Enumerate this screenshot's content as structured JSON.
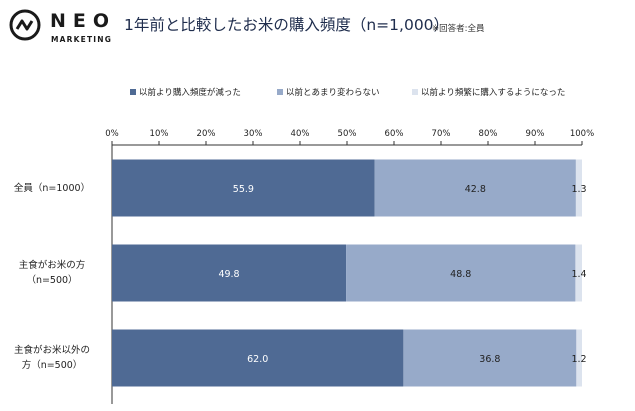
{
  "logo": {
    "name": "NEO",
    "sub": "MARKETING"
  },
  "title": "1年前と比較したお米の購入頻度（n=1,000）",
  "note": "※回答者:全員",
  "colors": {
    "series1": "#4f6a94",
    "series2": "#97aac9",
    "series3": "#dce3ee",
    "axis": "#333333",
    "title": "#1f2d4d"
  },
  "chart_data": {
    "type": "bar",
    "orientation": "horizontal",
    "stacked": true,
    "xlim": [
      0,
      100
    ],
    "xticks": [
      "0%",
      "10%",
      "20%",
      "30%",
      "40%",
      "50%",
      "60%",
      "70%",
      "80%",
      "90%",
      "100%"
    ],
    "legend_position": "top",
    "categories": [
      "全員（n=1000）",
      "主食がお米の方（n=500）",
      "主食がお米以外の方（n=500）"
    ],
    "category_lines": [
      [
        "全員（n=1000）"
      ],
      [
        "主食がお米の方",
        "（n=500）"
      ],
      [
        "主食がお米以外の",
        "方（n=500）"
      ]
    ],
    "series": [
      {
        "name": "以前より購入頻度が減った",
        "values": [
          55.9,
          49.8,
          62.0
        ],
        "labels": [
          "55.9",
          "49.8",
          "62.0"
        ]
      },
      {
        "name": "以前とあまり変わらない",
        "values": [
          42.8,
          48.8,
          36.8
        ],
        "labels": [
          "42.8",
          "48.8",
          "36.8"
        ]
      },
      {
        "name": "以前より頻繁に購入するようになった",
        "values": [
          1.3,
          1.4,
          1.2
        ],
        "labels": [
          "1.3",
          "1.4",
          "1.2"
        ]
      }
    ]
  }
}
